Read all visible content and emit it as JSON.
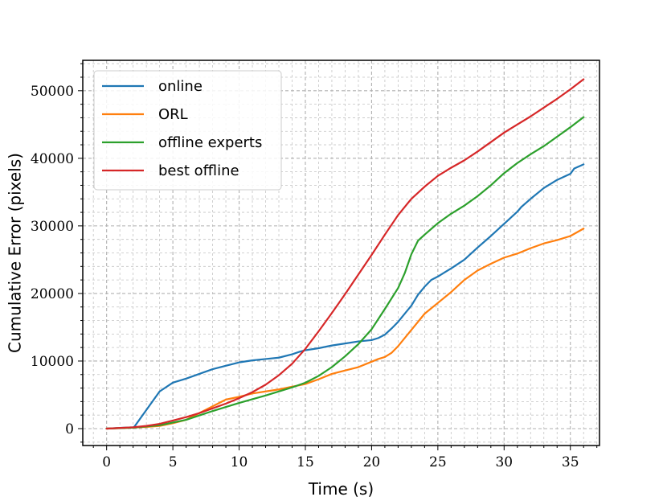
{
  "chart_data": {
    "type": "line",
    "title": "",
    "xlabel": "Time (s)",
    "ylabel": "Cumulative Error (pixels)",
    "xlim": [
      -1.8,
      37.2
    ],
    "ylim": [
      -2500,
      54500
    ],
    "xticks": [
      0,
      5,
      10,
      15,
      20,
      25,
      30,
      35
    ],
    "yticks": [
      0,
      10000,
      20000,
      30000,
      40000,
      50000
    ],
    "grid": "on (major and minor, dashed)",
    "legend_position": "upper-left",
    "series": [
      {
        "name": "online",
        "color": "#1f77b4",
        "x": [
          0,
          1,
          2,
          2.1,
          4,
          5,
          6,
          7,
          8,
          9,
          10,
          11,
          12,
          13,
          14,
          14.6,
          15,
          16,
          17,
          18,
          19,
          20,
          20.5,
          21,
          21.5,
          22,
          23,
          23.5,
          24,
          24.5,
          25,
          25.5,
          26,
          27,
          28,
          29,
          30,
          31,
          31.3,
          32,
          33,
          34,
          35,
          35.3,
          36
        ],
        "y": [
          0,
          100,
          200,
          300,
          5500,
          6800,
          7400,
          8100,
          8800,
          9300,
          9800,
          10100,
          10300,
          10500,
          11000,
          11400,
          11600,
          11900,
          12300,
          12600,
          12900,
          13100,
          13400,
          13900,
          14800,
          15800,
          18200,
          19800,
          21000,
          22000,
          22500,
          23100,
          23700,
          25000,
          26800,
          28500,
          30300,
          32100,
          32800,
          34000,
          35600,
          36800,
          37700,
          38500,
          39100
        ]
      },
      {
        "name": "ORL",
        "color": "#ff7f0e",
        "x": [
          0,
          2,
          3,
          4,
          5,
          6,
          7,
          8,
          9,
          10,
          11,
          12,
          13,
          14,
          15,
          16,
          17,
          18,
          19,
          20,
          20.5,
          21,
          21.5,
          22,
          23,
          24,
          25,
          26,
          27,
          28,
          29,
          30,
          31,
          32,
          33,
          34,
          35,
          36
        ],
        "y": [
          0,
          150,
          250,
          400,
          800,
          1300,
          2300,
          3300,
          4300,
          4700,
          5200,
          5500,
          5800,
          6200,
          6600,
          7300,
          8100,
          8600,
          9100,
          9900,
          10300,
          10600,
          11200,
          12200,
          14600,
          17000,
          18600,
          20200,
          22000,
          23400,
          24400,
          25300,
          25900,
          26700,
          27400,
          27900,
          28500,
          29600
        ]
      },
      {
        "name": "offline experts",
        "color": "#2ca02c",
        "x": [
          0,
          2,
          4,
          6,
          8,
          10,
          12,
          14,
          15,
          16,
          17,
          18,
          19,
          20,
          21,
          22,
          22.5,
          23,
          23.5,
          24,
          25,
          26,
          27,
          28,
          29,
          30,
          31,
          32,
          33,
          34,
          35,
          36
        ],
        "y": [
          0,
          150,
          500,
          1300,
          2600,
          3800,
          4900,
          6100,
          6800,
          7800,
          9100,
          10700,
          12500,
          14700,
          17700,
          20800,
          23000,
          25800,
          27800,
          28700,
          30400,
          31800,
          33000,
          34400,
          36000,
          37800,
          39300,
          40600,
          41800,
          43200,
          44600,
          46100
        ]
      },
      {
        "name": "best offline",
        "color": "#d62728",
        "x": [
          0,
          2,
          3,
          4,
          5,
          6,
          7,
          8,
          9,
          10,
          11,
          12,
          13,
          14,
          15,
          16,
          17,
          18,
          19,
          20,
          21,
          22,
          23,
          24,
          25,
          26,
          27,
          28,
          29,
          30,
          31,
          32,
          33,
          34,
          35,
          36
        ],
        "y": [
          0,
          200,
          400,
          700,
          1200,
          1700,
          2300,
          3000,
          3700,
          4500,
          5400,
          6500,
          7900,
          9600,
          11800,
          14400,
          17100,
          19900,
          22800,
          25700,
          28700,
          31600,
          34000,
          35800,
          37400,
          38600,
          39700,
          41000,
          42400,
          43800,
          45000,
          46200,
          47500,
          48800,
          50200,
          51700
        ]
      }
    ]
  }
}
